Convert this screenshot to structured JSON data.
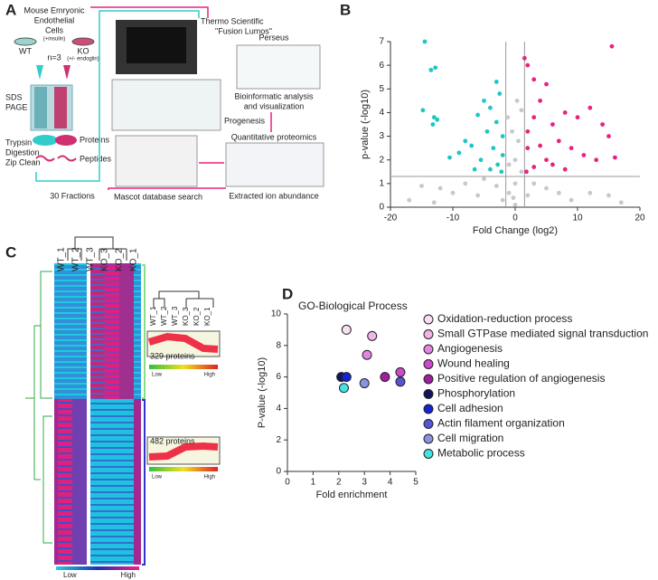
{
  "panel_a": {
    "label": "A",
    "cells": [
      "Mouse Emryonic",
      "Endothelial",
      "Cells"
    ],
    "insulin": "(+insulin)",
    "wt": "WT",
    "ko": "KO",
    "endoglin": "(+/- endoglin)",
    "n": "n=3",
    "sds": [
      "SDS",
      "PAGE"
    ],
    "trypsin": [
      "Trypsin",
      "Digestion",
      "Zip Clean"
    ],
    "proteins": "Proteins",
    "peptides": "Peptides",
    "fractions": "30 Fractions",
    "instrument": [
      "Thermo Scientific",
      "\"Fusion Lumos\""
    ],
    "progenesis": "Progenesis",
    "mascot": "Mascot database search",
    "perseus": "Perseus",
    "bioinf": [
      "Bioinformatic analysis",
      "and visualization"
    ],
    "quant": "Quantitative proteomics",
    "extracted": "Extracted ion abundance"
  },
  "panel_c": {
    "label": "C",
    "columns": [
      "WT_1",
      "WT_2",
      "WT_3",
      "KO_3",
      "KO_2",
      "KO_1"
    ],
    "cluster1": "329 proteins",
    "cluster2": "482 proteins",
    "low": "Low",
    "high": "High"
  },
  "chart_data": [
    {
      "type": "scatter",
      "label": "B",
      "xlabel": "Fold Change (log2)",
      "ylabel": "p-value (-log10)",
      "xlim": [
        -20,
        20
      ],
      "ylim": [
        0,
        7
      ],
      "xticks": [
        -20,
        -10,
        0,
        10,
        20
      ],
      "yticks": [
        0,
        1,
        2,
        3,
        4,
        5,
        6,
        7
      ],
      "ref_y": 1.3,
      "ref_x": [
        -1.5,
        1.5
      ],
      "series": [
        {
          "color": "#c8c8c8",
          "x": [
            -15,
            -12,
            -10,
            -8,
            -6,
            -5,
            -3,
            -2,
            -1,
            0,
            0,
            -0.5,
            0.5,
            -1,
            1,
            0,
            2,
            3,
            5,
            7,
            9,
            12,
            15,
            -17,
            17,
            -13,
            1,
            -1.2,
            0.3,
            -0.3
          ],
          "values": [
            0.9,
            0.8,
            0.6,
            1,
            0.5,
            1.2,
            0.9,
            0.3,
            0.6,
            1,
            2,
            3.2,
            2.8,
            1.8,
            1.5,
            0.1,
            0.5,
            1,
            0.8,
            0.6,
            0.3,
            0.6,
            0.5,
            0.3,
            0.2,
            0.2,
            4.1,
            3.8,
            4.5,
            0.4
          ]
        },
        {
          "color": "#1fc6c6",
          "x": [
            -14.5,
            -13.5,
            -12.8,
            -14.8,
            -13,
            -12.5,
            -13.2,
            -6,
            -5,
            -4,
            -3,
            -2.5,
            -8,
            -9,
            -10.5,
            -7,
            -4.5,
            -3.5,
            -2,
            -2.8,
            -6.5,
            -5.5,
            -3,
            -2,
            -2.2,
            -4
          ],
          "values": [
            7,
            5.8,
            5.9,
            4.1,
            3.8,
            3.7,
            3.5,
            3.9,
            4.5,
            4.2,
            5.3,
            4.8,
            2.8,
            2.3,
            2.1,
            2.6,
            3.2,
            2.5,
            2.2,
            1.8,
            1.6,
            2,
            3.6,
            3,
            1.5,
            1.6
          ]
        },
        {
          "color": "#e8237f",
          "x": [
            15.5,
            1.5,
            2,
            3,
            5,
            12,
            10,
            14,
            15,
            8,
            6,
            4,
            3,
            2,
            7,
            9,
            11,
            13,
            16,
            5,
            3,
            2,
            1.8,
            4,
            6,
            8
          ],
          "values": [
            6.8,
            6.3,
            6,
            5.4,
            5.2,
            4.2,
            3.8,
            3.5,
            3,
            4,
            3.5,
            4.5,
            3.8,
            3.2,
            2.8,
            2.5,
            2.2,
            2,
            2.1,
            2,
            1.7,
            2.5,
            1.5,
            2.6,
            1.8,
            1.6
          ]
        }
      ]
    },
    {
      "type": "scatter",
      "label": "D",
      "title": "GO-Biological Process",
      "xlabel": "Fold enrichment",
      "ylabel": "P-value (-log10)",
      "xlim": [
        0,
        5
      ],
      "ylim": [
        0,
        10
      ],
      "xticks": [
        0,
        1,
        2,
        3,
        4,
        5
      ],
      "yticks": [
        0,
        2,
        4,
        6,
        8,
        10
      ],
      "legend": "right",
      "series": [
        {
          "name": "Oxidation-reduction process",
          "color": "#f7e0f3",
          "x": [
            2.3
          ],
          "values": [
            9
          ]
        },
        {
          "name": "Small GTPase mediated signal transduction",
          "color": "#f2b4ea",
          "x": [
            3.3
          ],
          "values": [
            8.6
          ]
        },
        {
          "name": "Angiogenesis",
          "color": "#e486e2",
          "x": [
            3.1
          ],
          "values": [
            7.4
          ]
        },
        {
          "name": "Wound healing",
          "color": "#cd4acd",
          "x": [
            4.4
          ],
          "values": [
            6.3
          ]
        },
        {
          "name": "Positive regulation of angiogenesis",
          "color": "#a01ea0",
          "x": [
            3.8
          ],
          "values": [
            6
          ]
        },
        {
          "name": "Phosphorylation",
          "color": "#14145e",
          "x": [
            2.1
          ],
          "values": [
            6
          ]
        },
        {
          "name": "Cell adhesion",
          "color": "#1424d2",
          "x": [
            2.3
          ],
          "values": [
            6
          ]
        },
        {
          "name": "Actin filament organization",
          "color": "#5555d5",
          "x": [
            4.4
          ],
          "values": [
            5.7
          ]
        },
        {
          "name": "Cell migration",
          "color": "#8c92e2",
          "x": [
            3
          ],
          "values": [
            5.6
          ]
        },
        {
          "name": "Metabolic process",
          "color": "#45e2e2",
          "x": [
            2.2
          ],
          "values": [
            5.3
          ]
        }
      ]
    }
  ]
}
